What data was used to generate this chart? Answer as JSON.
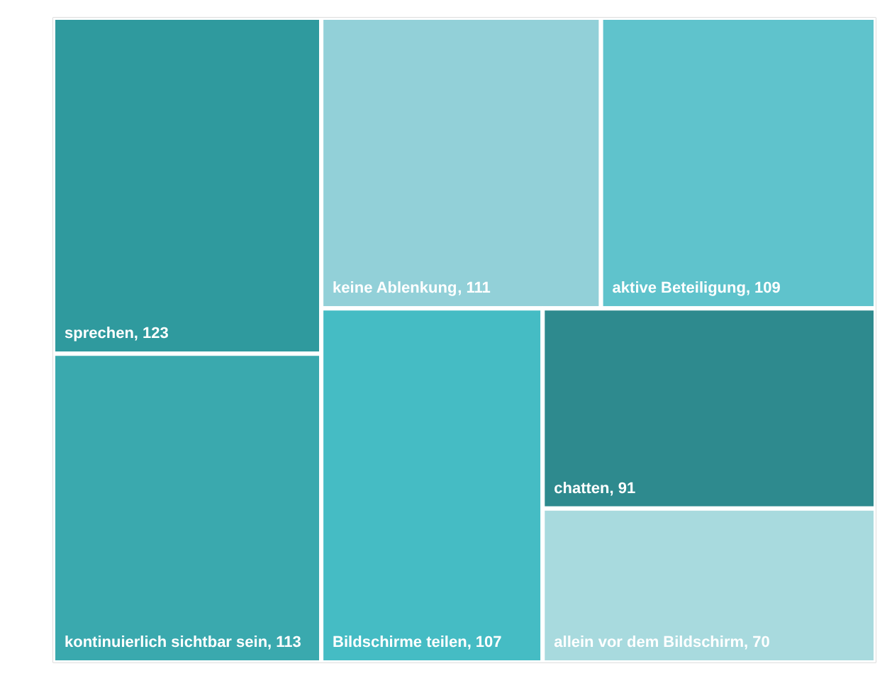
{
  "chart_data": {
    "type": "other",
    "categories": [
      "sprechen",
      "kontinuierlich sichtbar sein",
      "keine Ablenkung",
      "aktive Beteiligung",
      "Bildschirme teilen",
      "chatten",
      "allein vor dem Bildschirm"
    ],
    "values": [
      123,
      113,
      111,
      109,
      107,
      91,
      70
    ],
    "value_labels": [
      ", 123",
      ", 113",
      ", 111",
      ", 109",
      ", 107",
      ", 91",
      ", 70"
    ],
    "colors": [
      "#2f9a9e",
      "#3aa9ae",
      "#92d0d8",
      "#5fc3cc",
      "#45bcc4",
      "#2e8a8e",
      "#a8dade"
    ]
  }
}
